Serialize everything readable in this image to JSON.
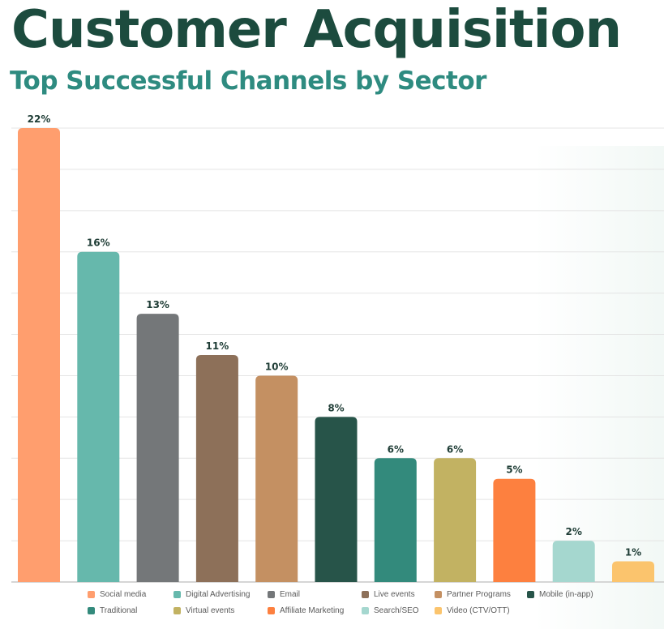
{
  "title": "Customer Acquisition",
  "subtitle": "Top Successful Channels by Sector",
  "colors": {
    "title": "#1c4b3e",
    "subtitle": "#2e8b80",
    "label": "#1f3d36",
    "grid": "#e4e4e4",
    "baseline": "#c9c9c9"
  },
  "chart_data": {
    "type": "bar",
    "title": "",
    "xlabel": "",
    "ylabel": "",
    "ylim": [
      0,
      22
    ],
    "grid": true,
    "legend_position": "bottom",
    "series": [
      {
        "name": "Social media",
        "value": 22,
        "label": "22%",
        "color": "#ff9e6e"
      },
      {
        "name": "Digital Advertising",
        "value": 16,
        "label": "16%",
        "color": "#66b8ac"
      },
      {
        "name": "Email",
        "value": 13,
        "label": "13%",
        "color": "#747779"
      },
      {
        "name": "Live events",
        "value": 11,
        "label": "11%",
        "color": "#8d7059"
      },
      {
        "name": "Partner Programs",
        "value": 10,
        "label": "10%",
        "color": "#c49062"
      },
      {
        "name": "Mobile (in-app)",
        "value": 8,
        "label": "8%",
        "color": "#275449"
      },
      {
        "name": "Traditional",
        "value": 6,
        "label": "6%",
        "color": "#338a7c"
      },
      {
        "name": "Virtual events",
        "value": 6,
        "label": "6%",
        "color": "#c2b262"
      },
      {
        "name": "Affiliate Marketing",
        "value": 5,
        "label": "5%",
        "color": "#fd803f"
      },
      {
        "name": "Search/SEO",
        "value": 2,
        "label": "2%",
        "color": "#a5d7cf"
      },
      {
        "name": "Video (CTV/OTT)",
        "value": 1,
        "label": "1%",
        "color": "#fbc46d"
      }
    ]
  }
}
